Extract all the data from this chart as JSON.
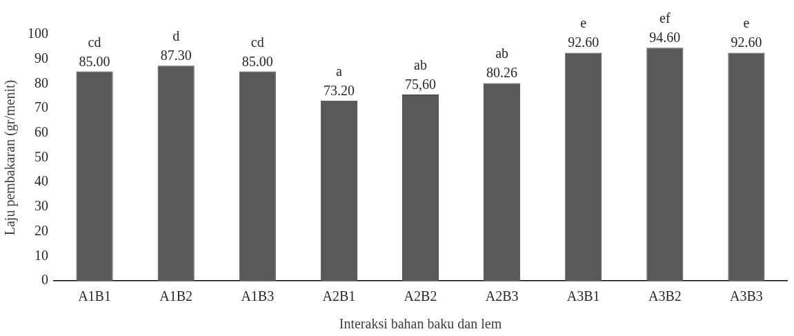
{
  "chart_data": {
    "type": "bar",
    "xlabel": "Interaksi bahan baku dan lem",
    "ylabel": "Laju pembakaran (gr/menit)",
    "categories": [
      "A1B1",
      "A1B2",
      "A1B3",
      "A2B1",
      "A2B2",
      "A2B3",
      "A3B1",
      "A3B2",
      "A3B3"
    ],
    "values": [
      85.0,
      87.3,
      85.0,
      73.2,
      75.6,
      80.26,
      92.6,
      94.6,
      92.6
    ],
    "value_labels": [
      "85.00",
      "87.30",
      "85.00",
      "73.20",
      "75,60",
      "80.26",
      "92.60",
      "94.60",
      "92.60"
    ],
    "color": "#595959",
    "ylim": [
      0,
      100
    ],
    "yticks": [
      0,
      10,
      20,
      30,
      40,
      50,
      60,
      70,
      80,
      90,
      100
    ],
    "grid": false,
    "legend": false,
    "annotations": [
      {
        "text": "cd",
        "x": "A1B1",
        "y": 85.0
      },
      {
        "text": "d",
        "x": "A1B2",
        "y": 87.3
      },
      {
        "text": "cd",
        "x": "A1B3",
        "y": 85.0
      },
      {
        "text": "a",
        "x": "A2B1",
        "y": 73.2
      },
      {
        "text": "ab",
        "x": "A2B2",
        "y": 75.6
      },
      {
        "text": "ab",
        "x": "A2B3",
        "y": 80.26
      },
      {
        "text": "e",
        "x": "A3B1",
        "y": 92.6
      },
      {
        "text": "ef",
        "x": "A3B2",
        "y": 94.6
      },
      {
        "text": "e",
        "x": "A3B3",
        "y": 92.6
      }
    ]
  }
}
